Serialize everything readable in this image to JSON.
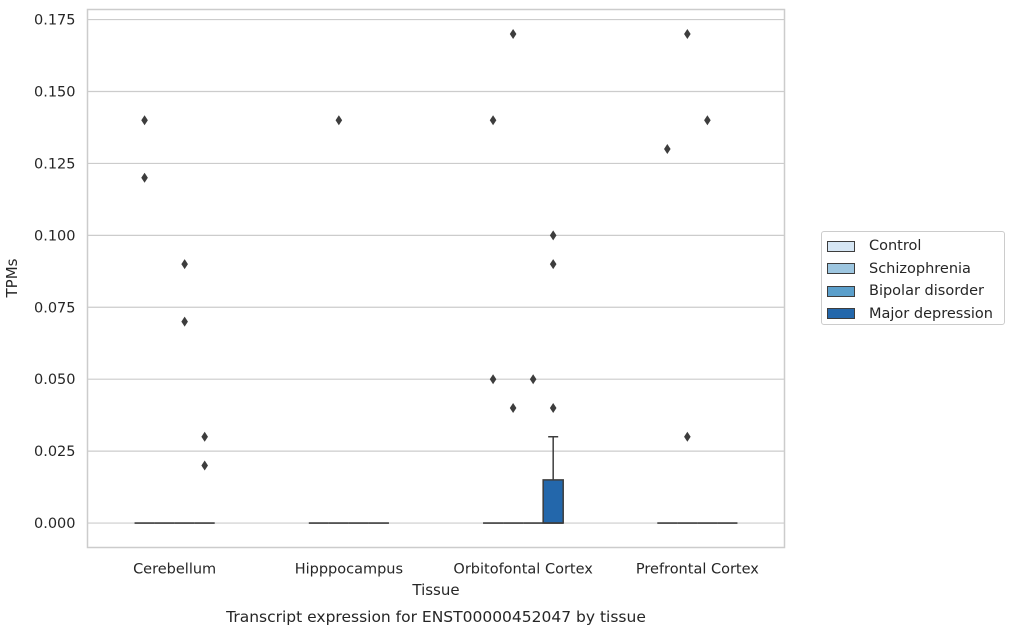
{
  "chart_data": {
    "type": "box",
    "title": "Transcript expression for ENST00000452047 by tissue",
    "xlabel": "Tissue",
    "ylabel": "TPMs",
    "ylim": [
      -0.0085,
      0.1785
    ],
    "yticks": [
      "0.000",
      "0.025",
      "0.050",
      "0.075",
      "0.100",
      "0.125",
      "0.150",
      "0.175"
    ],
    "ytick_values": [
      0,
      0.025,
      0.05,
      0.075,
      0.1,
      0.125,
      0.15,
      0.175
    ],
    "grid": true,
    "legend_position": "right",
    "categories": [
      "Cerebellum",
      "Hipppocampus",
      "Orbitofontal Cortex",
      "Prefrontal Cortex"
    ],
    "series": [
      {
        "name": "Control",
        "color": "#d6e6f4",
        "boxes": [
          {
            "q1": 0,
            "median": 0,
            "q3": 0,
            "whisker_low": 0,
            "whisker_high": 0,
            "fliers": [
              0.14,
              0.12
            ]
          },
          {
            "q1": 0,
            "median": 0,
            "q3": 0,
            "whisker_low": 0,
            "whisker_high": 0,
            "fliers": []
          },
          {
            "q1": 0,
            "median": 0,
            "q3": 0,
            "whisker_low": 0,
            "whisker_high": 0,
            "fliers": [
              0.14,
              0.05
            ]
          },
          {
            "q1": 0,
            "median": 0,
            "q3": 0,
            "whisker_low": 0,
            "whisker_high": 0,
            "fliers": [
              0.13
            ]
          }
        ]
      },
      {
        "name": "Schizophrenia",
        "color": "#9dc6e0",
        "boxes": [
          {
            "q1": 0,
            "median": 0,
            "q3": 0,
            "whisker_low": 0,
            "whisker_high": 0,
            "fliers": []
          },
          {
            "q1": 0,
            "median": 0,
            "q3": 0,
            "whisker_low": 0,
            "whisker_high": 0,
            "fliers": [
              0.14
            ]
          },
          {
            "q1": 0,
            "median": 0,
            "q3": 0,
            "whisker_low": 0,
            "whisker_high": 0,
            "fliers": [
              0.17,
              0.04
            ]
          },
          {
            "q1": 0,
            "median": 0,
            "q3": 0,
            "whisker_low": 0,
            "whisker_high": 0,
            "fliers": [
              0.17,
              0.03
            ]
          }
        ]
      },
      {
        "name": "Bipolar disorder",
        "color": "#5b9fcb",
        "boxes": [
          {
            "q1": 0,
            "median": 0,
            "q3": 0,
            "whisker_low": 0,
            "whisker_high": 0,
            "fliers": [
              0.09,
              0.07
            ]
          },
          {
            "q1": 0,
            "median": 0,
            "q3": 0,
            "whisker_low": 0,
            "whisker_high": 0,
            "fliers": []
          },
          {
            "q1": 0,
            "median": 0,
            "q3": 0,
            "whisker_low": 0,
            "whisker_high": 0,
            "fliers": [
              0.05
            ]
          },
          {
            "q1": 0,
            "median": 0,
            "q3": 0,
            "whisker_low": 0,
            "whisker_high": 0,
            "fliers": [
              0.14
            ]
          }
        ]
      },
      {
        "name": "Major depression",
        "color": "#2367ab",
        "boxes": [
          {
            "q1": 0,
            "median": 0,
            "q3": 0,
            "whisker_low": 0,
            "whisker_high": 0,
            "fliers": [
              0.03,
              0.02
            ]
          },
          {
            "q1": 0,
            "median": 0,
            "q3": 0,
            "whisker_low": 0,
            "whisker_high": 0,
            "fliers": []
          },
          {
            "q1": 0,
            "median": 0,
            "q3": 0.015,
            "whisker_low": 0,
            "whisker_high": 0.03,
            "fliers": [
              0.1,
              0.09,
              0.04
            ]
          },
          {
            "q1": 0,
            "median": 0,
            "q3": 0,
            "whisker_low": 0,
            "whisker_high": 0,
            "fliers": []
          }
        ]
      }
    ]
  }
}
